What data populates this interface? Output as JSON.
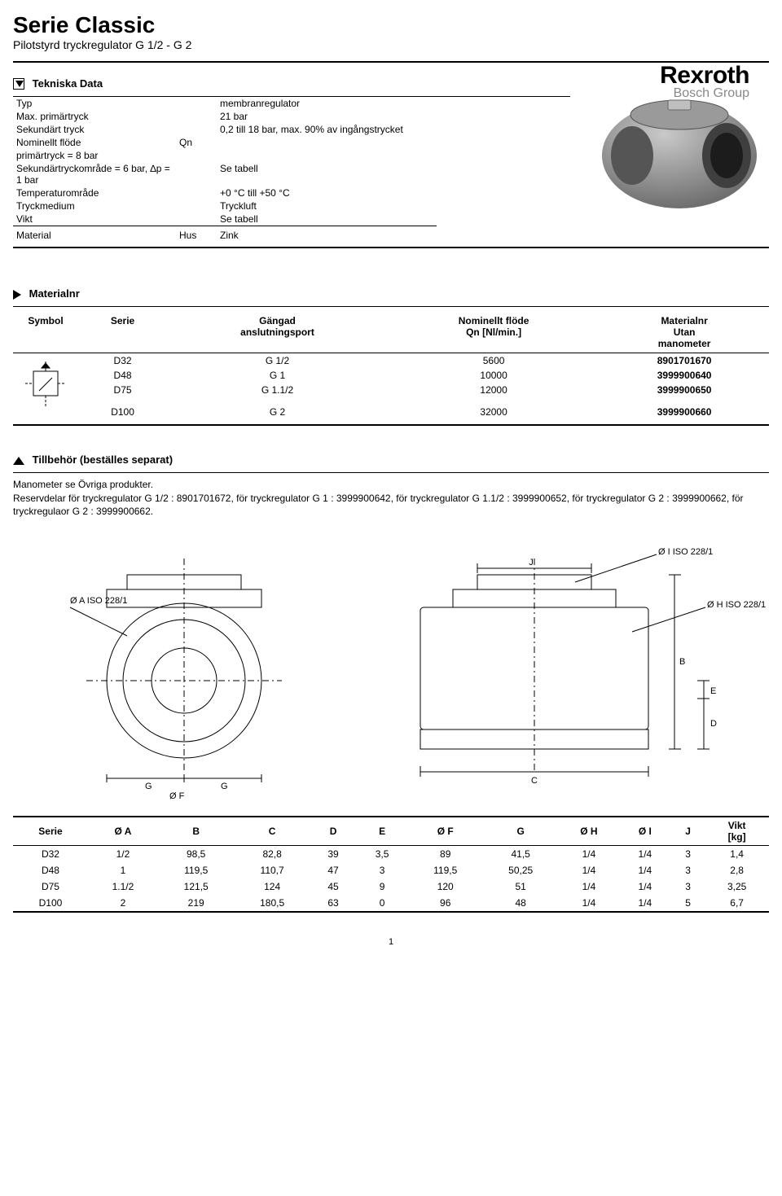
{
  "header": {
    "title": "Serie Classic",
    "subtitle": "Pilotstyrd tryckregulator G 1/2 - G 2",
    "brand_main": "Rexroth",
    "brand_sub": "Bosch Group"
  },
  "tekniska": {
    "heading": "Tekniska Data",
    "rows": [
      {
        "label": "Typ",
        "mid": "",
        "value": "membranregulator"
      },
      {
        "label": "Max. primärtryck",
        "mid": "",
        "value": "21 bar"
      },
      {
        "label": "Sekundärt tryck",
        "mid": "",
        "value": "0,2 till 18 bar, max. 90% av ingångstrycket"
      },
      {
        "label": "Nominellt flöde",
        "mid": "Qn",
        "value": ""
      },
      {
        "label": "primärtryck = 8 bar",
        "mid": "",
        "value": ""
      },
      {
        "label": "Sekundärtryckområde = 6 bar, ∆p = 1 bar",
        "mid": "",
        "value": "Se tabell"
      },
      {
        "label": "Temperaturområde",
        "mid": "",
        "value": "+0 °C till +50 °C"
      },
      {
        "label": "Tryckmedium",
        "mid": "",
        "value": "Tryckluft"
      },
      {
        "label": "Vikt",
        "mid": "",
        "value": "Se tabell"
      }
    ],
    "material_row": {
      "label": "Material",
      "mid": "Hus",
      "value": "Zink"
    }
  },
  "materialnr": {
    "heading": "Materialnr",
    "headers": {
      "symbol": "Symbol",
      "serie": "Serie",
      "ganga": "Gängad",
      "ganga2": "anslutningsport",
      "flow": "Nominellt flöde",
      "flow2": "Qn [Nl/min.]",
      "mat": "Materialnr",
      "mat2": "Utan",
      "mat3": "manometer"
    },
    "rows": [
      {
        "serie": "D32",
        "g": "G 1/2",
        "qn": "5600",
        "mat": "8901701670"
      },
      {
        "serie": "D48",
        "g": "G 1",
        "qn": "10000",
        "mat": "3999900640"
      },
      {
        "serie": "D75",
        "g": "G 1.1/2",
        "qn": "12000",
        "mat": "3999900650"
      },
      {
        "serie": "D100",
        "g": "G 2",
        "qn": "32000",
        "mat": "3999900660"
      }
    ]
  },
  "tillbehor": {
    "heading": "Tillbehör (beställes separat)",
    "line1": "Manometer se Övriga produkter.",
    "line2": "Reservdelar för tryckregulator G 1/2 : 8901701672, för tryckregulator G 1 : 3999900642, för tryckregulator G 1.1/2 : 3999900652, för tryckregulator G 2 : 3999900662, för tryckregulaor G 2 : 3999900662."
  },
  "drawing_annotations": {
    "a": "Ø A ISO 228/1",
    "h": "Ø H ISO 228/1",
    "i": "Ø I ISO 228/1",
    "b": "B",
    "c": "C",
    "d": "D",
    "e": "E",
    "f": "Ø F",
    "g": "G",
    "j": "J"
  },
  "dimensions": {
    "headers": [
      "Serie",
      "Ø A",
      "B",
      "C",
      "D",
      "E",
      "Ø F",
      "G",
      "Ø H",
      "Ø I",
      "J",
      "Vikt [kg]"
    ],
    "rows": [
      [
        "D32",
        "1/2",
        "98,5",
        "82,8",
        "39",
        "3,5",
        "89",
        "41,5",
        "1/4",
        "1/4",
        "3",
        "1,4"
      ],
      [
        "D48",
        "1",
        "119,5",
        "110,7",
        "47",
        "3",
        "119,5",
        "50,25",
        "1/4",
        "1/4",
        "3",
        "2,8"
      ],
      [
        "D75",
        "1.1/2",
        "121,5",
        "124",
        "45",
        "9",
        "120",
        "51",
        "1/4",
        "1/4",
        "3",
        "3,25"
      ],
      [
        "D100",
        "2",
        "219",
        "180,5",
        "63",
        "0",
        "96",
        "48",
        "1/4",
        "1/4",
        "5",
        "6,7"
      ]
    ]
  },
  "page_number": "1",
  "colors": {
    "text": "#000000",
    "muted": "#888888",
    "background": "#ffffff"
  }
}
